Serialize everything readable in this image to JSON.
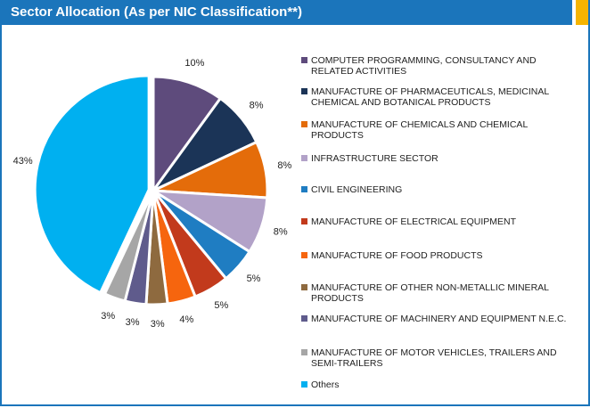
{
  "chart_data": {
    "type": "pie",
    "title": "Sector Allocation (As per NIC Classification**)",
    "categories": [
      "COMPUTER PROGRAMMING, CONSULTANCY AND RELATED ACTIVITIES",
      "MANUFACTURE OF PHARMACEUTICALS, MEDICINAL CHEMICAL AND BOTANICAL PRODUCTS",
      "MANUFACTURE OF CHEMICALS AND CHEMICAL PRODUCTS",
      "INFRASTRUCTURE SECTOR",
      "CIVIL ENGINEERING",
      "MANUFACTURE OF ELECTRICAL EQUIPMENT",
      "MANUFACTURE OF FOOD PRODUCTS",
      "MANUFACTURE OF OTHER NON-METALLIC MINERAL PRODUCTS",
      "MANUFACTURE OF MACHINERY AND EQUIPMENT N.E.C.",
      "MANUFACTURE OF MOTOR VEHICLES, TRAILERS AND SEMI-TRAILERS",
      "Others"
    ],
    "values": [
      10,
      8,
      8,
      8,
      5,
      5,
      4,
      3,
      3,
      3,
      43
    ],
    "value_labels": [
      "10%",
      "8%",
      "8%",
      "8%",
      "5%",
      "5%",
      "4%",
      "3%",
      "3%",
      "3%",
      "43%"
    ],
    "colors": [
      "#5e4b7c",
      "#1b3457",
      "#e46c0a",
      "#b2a2c8",
      "#1f7dc2",
      "#c23a1c",
      "#f6650e",
      "#8e6a3f",
      "#5f5b8c",
      "#a6a6a6",
      "#00b0f0"
    ],
    "legend": "right"
  }
}
